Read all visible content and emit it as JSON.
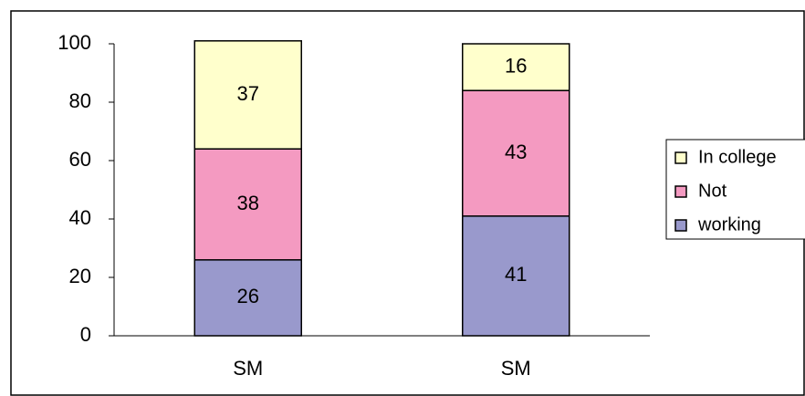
{
  "chart_data": {
    "type": "stacked-bar",
    "categories": [
      "SM",
      "SM"
    ],
    "series": [
      {
        "name": "working",
        "color": "#9999cc",
        "values": [
          26,
          41
        ]
      },
      {
        "name": "Not",
        "color": "#f49ac1",
        "values": [
          38,
          43
        ]
      },
      {
        "name": "In college",
        "color": "#ffffcc",
        "values": [
          37,
          16
        ]
      }
    ],
    "ylim": [
      0,
      100
    ],
    "yticks": [
      0,
      20,
      40,
      60,
      80,
      100
    ],
    "grid": false,
    "legend": "right"
  }
}
